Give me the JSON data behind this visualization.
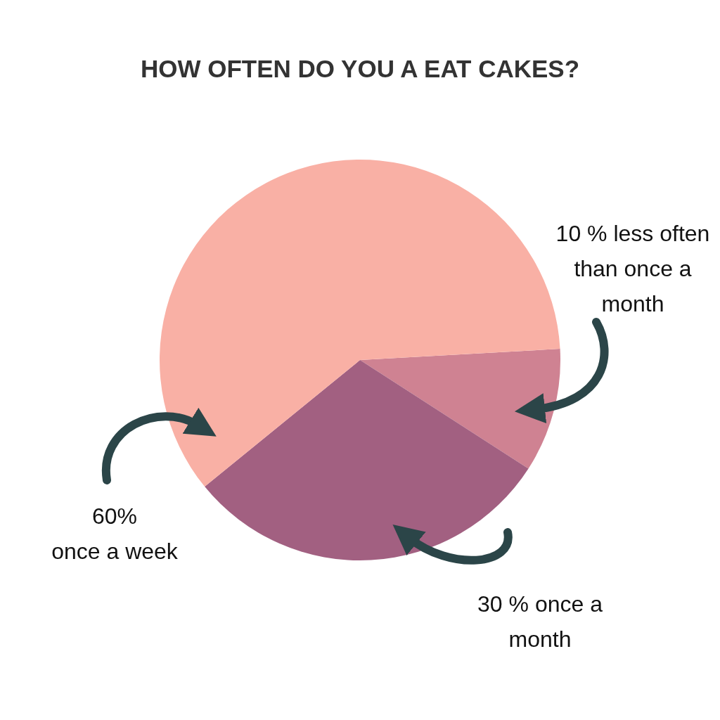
{
  "chart_data": {
    "type": "pie",
    "title": "HOW OFTEN DO YOU A EAT CAKES?",
    "categories": [
      "less often than once a month",
      "once a month",
      "once a week"
    ],
    "values": [
      10,
      30,
      60
    ],
    "value_labels": [
      "10 %",
      "30 %",
      "60%"
    ],
    "colors": [
      "#cf8292",
      "#a26081",
      "#f9b0a5"
    ]
  }
}
